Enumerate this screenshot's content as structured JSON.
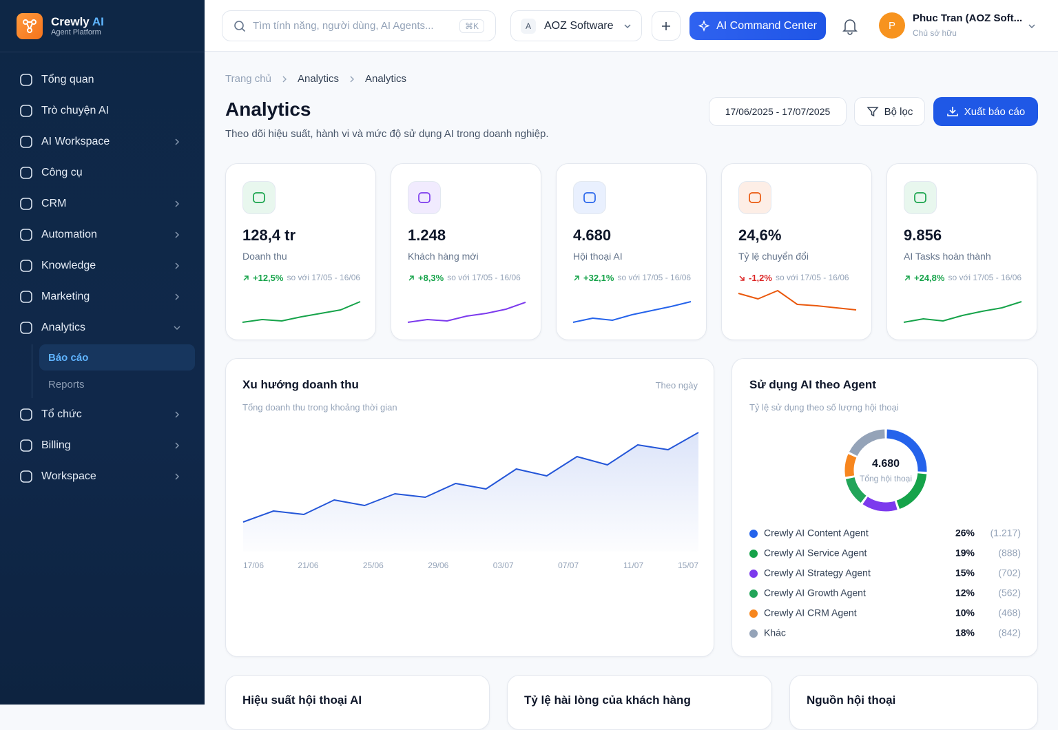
{
  "brand": {
    "name": "Crewly",
    "accent": "AI",
    "tagline": "Agent Platform"
  },
  "nav": [
    {
      "label": "Tổng quan",
      "chevron": false
    },
    {
      "label": "Trò chuyện AI",
      "chevron": false
    },
    {
      "label": "AI Workspace",
      "chevron": true
    },
    {
      "label": "Công cụ",
      "chevron": false
    },
    {
      "label": "CRM",
      "chevron": true
    },
    {
      "label": "Automation",
      "chevron": true
    },
    {
      "label": "Knowledge",
      "chevron": true
    },
    {
      "label": "Marketing",
      "chevron": true
    },
    {
      "label": "Analytics",
      "chevron": true,
      "expanded": true
    }
  ],
  "subnav": {
    "items": [
      "Báo cáo",
      "Reports"
    ],
    "active": 0
  },
  "nav_after": [
    {
      "label": "Tổ chức",
      "chevron": true
    },
    {
      "label": "Billing",
      "chevron": true
    },
    {
      "label": "Workspace",
      "chevron": true
    }
  ],
  "topbar": {
    "search_placeholder": "Tìm tính năng, người dùng, AI Agents...",
    "shortcut": "⌘K",
    "org_initial": "A",
    "org": "AOZ Software",
    "command": "AI Command Center",
    "user_initial": "P",
    "user_name": "Phuc Tran (AOZ Soft...",
    "user_role": "Chủ sở hữu"
  },
  "breadcrumb": [
    "Trang chủ",
    "Analytics",
    "Analytics"
  ],
  "page": {
    "title": "Analytics",
    "subtitle": "Theo dõi hiệu suất, hành vi và mức độ sử dụng AI trong doanh nghiệp.",
    "date_range": "17/06/2025 - 17/07/2025",
    "filter": "Bộ lọc",
    "export": "Xuất báo cáo"
  },
  "kpis": [
    {
      "value": "128,4 tr",
      "label": "Doanh thu",
      "change": "+12,5%",
      "compare": "so với 17/05 - 16/06",
      "trend": "up",
      "color": "#16a34a",
      "tint": "#e8f7ee",
      "spark": [
        5,
        9,
        7,
        13,
        18,
        23,
        35
      ]
    },
    {
      "value": "1.248",
      "label": "Khách hàng mới",
      "change": "+8,3%",
      "compare": "so với 17/05 - 16/06",
      "trend": "up",
      "color": "#7c3aed",
      "tint": "#f1ebfe",
      "spark": [
        5,
        9,
        7,
        14,
        18,
        24,
        34
      ]
    },
    {
      "value": "4.680",
      "label": "Hội thoại AI",
      "change": "+32,1%",
      "compare": "so với 17/05 - 16/06",
      "trend": "up",
      "color": "#2563eb",
      "tint": "#e9f0fe",
      "spark": [
        5,
        11,
        8,
        16,
        22,
        28,
        35
      ]
    },
    {
      "value": "24,6%",
      "label": "Tỷ lệ chuyển đổi",
      "change": "-1,2%",
      "compare": "so với 17/05 - 16/06",
      "trend": "down",
      "color": "#ea580c",
      "tint": "#fdeee6",
      "spark": [
        47,
        39,
        51,
        31,
        29,
        26,
        23
      ]
    },
    {
      "value": "9.856",
      "label": "AI Tasks hoàn thành",
      "change": "+24,8%",
      "compare": "so với 17/05 - 16/06",
      "trend": "up",
      "color": "#16a34a",
      "tint": "#e8f7ee",
      "spark": [
        5,
        10,
        7,
        15,
        21,
        26,
        35
      ]
    }
  ],
  "revenue": {
    "title": "Xu hướng doanh thu",
    "subtitle": "Tổng doanh thu trong khoảng thời gian",
    "period": "Theo ngày",
    "x_labels": [
      "17/06",
      "21/06",
      "25/06",
      "29/06",
      "03/07",
      "07/07",
      "11/07",
      "15/07"
    ],
    "values": [
      43,
      59,
      54,
      75,
      67,
      84,
      79,
      99,
      91,
      120,
      110,
      138,
      126,
      155,
      148,
      173
    ],
    "color": "#2456d8"
  },
  "usage": {
    "title": "Sử dụng AI theo Agent",
    "subtitle": "Tỷ lệ sử dụng theo số lượng hội thoại",
    "total": "4.680",
    "total_label": "Tổng hội thoại",
    "legend": [
      {
        "name": "Crewly AI Content Agent",
        "color": "#2563eb",
        "pct": 26,
        "pct_label": "26%",
        "count": "(1.217)"
      },
      {
        "name": "Crewly AI Service Agent",
        "color": "#16a34a",
        "pct": 19,
        "pct_label": "19%",
        "count": "(888)"
      },
      {
        "name": "Crewly AI Strategy Agent",
        "color": "#7c3aed",
        "pct": 15,
        "pct_label": "15%",
        "count": "(702)"
      },
      {
        "name": "Crewly AI Growth Agent",
        "color": "#22a559",
        "pct": 12,
        "pct_label": "12%",
        "count": "(562)"
      },
      {
        "name": "Crewly AI CRM Agent",
        "color": "#f7861e",
        "pct": 10,
        "pct_label": "10%",
        "count": "(468)"
      },
      {
        "name": "Khác",
        "color": "#94a3b8",
        "pct": 18,
        "pct_label": "18%",
        "count": "(842)"
      }
    ]
  },
  "bottom_cards": [
    "Hiệu suất hội thoại AI",
    "Tỷ lệ hài lòng của khách hàng",
    "Nguồn hội thoại"
  ]
}
